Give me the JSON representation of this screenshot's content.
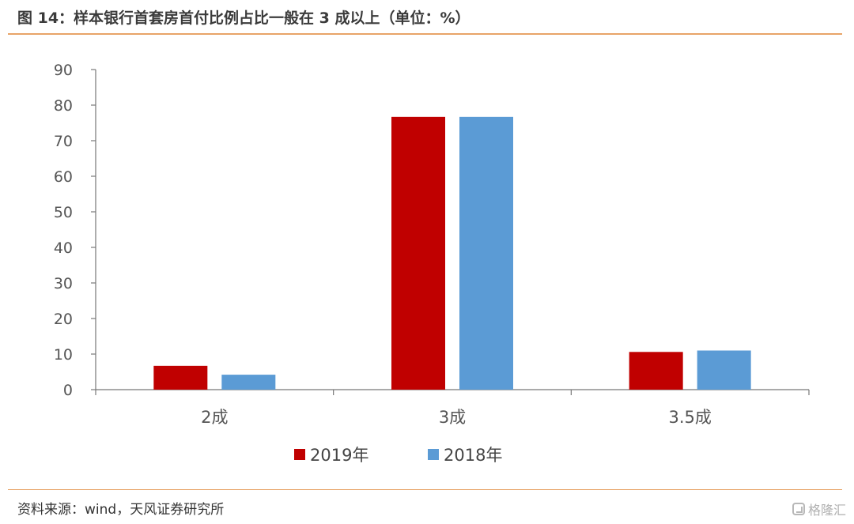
{
  "header": {
    "title": "图 14：样本银行首套房首付比例占比一般在 3 成以上（单位：%）"
  },
  "footer": {
    "source": "资料来源：wind，天风证券研究所",
    "watermark": "格隆汇"
  },
  "colors": {
    "accent_rule": "#e8a468",
    "series_2019": "#c00000",
    "series_2018": "#5b9bd5"
  },
  "chart_data": {
    "type": "bar",
    "title": "",
    "xlabel": "",
    "ylabel": "",
    "categories": [
      "2成",
      "3成",
      "3.5成"
    ],
    "series": [
      {
        "name": "2019年",
        "values": [
          6.7,
          76.7,
          10.6
        ]
      },
      {
        "name": "2018年",
        "values": [
          4.2,
          76.7,
          11.0
        ]
      }
    ],
    "ylim": [
      0,
      90
    ],
    "yticks": [
      "0",
      "10",
      "20",
      "30",
      "40",
      "50",
      "60",
      "70",
      "80",
      "90"
    ],
    "grid": false,
    "legend_position": "bottom-center"
  }
}
